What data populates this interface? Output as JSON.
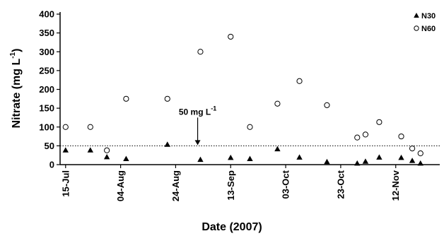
{
  "chart_data": {
    "type": "scatter",
    "title": "",
    "xlabel": "Date (2007)",
    "ylabel": "Nitrate (mg L",
    "ylabel_sup": "-1",
    "ylabel_close": ")",
    "xlim": [
      "2007-07-13",
      "2007-11-28"
    ],
    "ylim": [
      0,
      400
    ],
    "yticks": [
      0,
      50,
      100,
      150,
      200,
      250,
      300,
      350,
      400
    ],
    "xticks": [
      {
        "date": "2007-07-15",
        "label": "15-Jul"
      },
      {
        "date": "2007-08-04",
        "label": "04-Aug"
      },
      {
        "date": "2007-08-24",
        "label": "24-Aug"
      },
      {
        "date": "2007-09-13",
        "label": "13-Sep"
      },
      {
        "date": "2007-10-03",
        "label": "03-Oct"
      },
      {
        "date": "2007-10-23",
        "label": "23-Oct"
      },
      {
        "date": "2007-11-12",
        "label": "12-Nov"
      }
    ],
    "grid": false,
    "legend_position": "top-right",
    "reference_line": {
      "value": 50,
      "style": "dotted"
    },
    "annotation": {
      "text": "50 mg L",
      "sup": "-1",
      "date": "2007-09-01",
      "value": 50
    },
    "colors": {
      "axis": "#000000",
      "N30": "#000000",
      "N60": "#000000"
    },
    "series": [
      {
        "name": "N30",
        "marker": "filled-triangle",
        "points": [
          {
            "x": "2007-07-15",
            "y": 38
          },
          {
            "x": "2007-07-24",
            "y": 38
          },
          {
            "x": "2007-07-30",
            "y": 20
          },
          {
            "x": "2007-08-06",
            "y": 15
          },
          {
            "x": "2007-08-21",
            "y": 53
          },
          {
            "x": "2007-09-02",
            "y": 13
          },
          {
            "x": "2007-09-13",
            "y": 18
          },
          {
            "x": "2007-09-20",
            "y": 15
          },
          {
            "x": "2007-09-30",
            "y": 41
          },
          {
            "x": "2007-10-08",
            "y": 19
          },
          {
            "x": "2007-10-18",
            "y": 7
          },
          {
            "x": "2007-10-29",
            "y": 3
          },
          {
            "x": "2007-11-01",
            "y": 8
          },
          {
            "x": "2007-11-06",
            "y": 19
          },
          {
            "x": "2007-11-14",
            "y": 18
          },
          {
            "x": "2007-11-18",
            "y": 10
          },
          {
            "x": "2007-11-21",
            "y": 3
          }
        ]
      },
      {
        "name": "N60",
        "marker": "open-circle",
        "points": [
          {
            "x": "2007-07-15",
            "y": 100
          },
          {
            "x": "2007-07-24",
            "y": 100
          },
          {
            "x": "2007-07-30",
            "y": 38
          },
          {
            "x": "2007-08-06",
            "y": 175
          },
          {
            "x": "2007-08-21",
            "y": 175
          },
          {
            "x": "2007-09-02",
            "y": 300
          },
          {
            "x": "2007-09-13",
            "y": 340
          },
          {
            "x": "2007-09-20",
            "y": 100
          },
          {
            "x": "2007-09-30",
            "y": 162
          },
          {
            "x": "2007-10-08",
            "y": 222
          },
          {
            "x": "2007-10-18",
            "y": 158
          },
          {
            "x": "2007-10-29",
            "y": 72
          },
          {
            "x": "2007-11-01",
            "y": 80
          },
          {
            "x": "2007-11-06",
            "y": 113
          },
          {
            "x": "2007-11-14",
            "y": 75
          },
          {
            "x": "2007-11-18",
            "y": 43
          },
          {
            "x": "2007-11-21",
            "y": 30
          }
        ]
      }
    ]
  }
}
